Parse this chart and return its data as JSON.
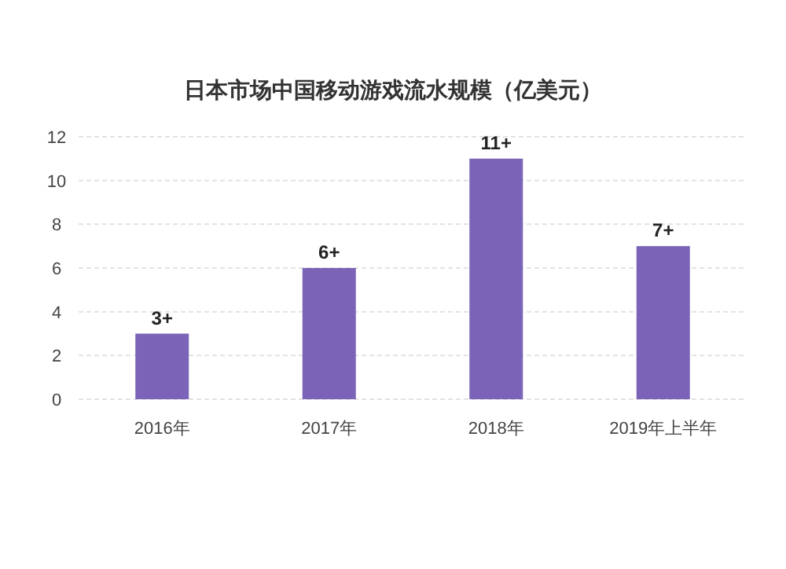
{
  "chart_data": {
    "type": "bar",
    "title": "日本市场中国移动游戏流水规模（亿美元）",
    "categories": [
      "2016年",
      "2017年",
      "2018年",
      "2019年上半年"
    ],
    "values": [
      3,
      6,
      11,
      7
    ],
    "value_labels": [
      "3+",
      "6+",
      "11+",
      "7+"
    ],
    "color": "#7b64b8",
    "ylim": [
      0,
      12
    ],
    "yticks": [
      0,
      2,
      4,
      6,
      8,
      10,
      12
    ],
    "grid": "y"
  }
}
